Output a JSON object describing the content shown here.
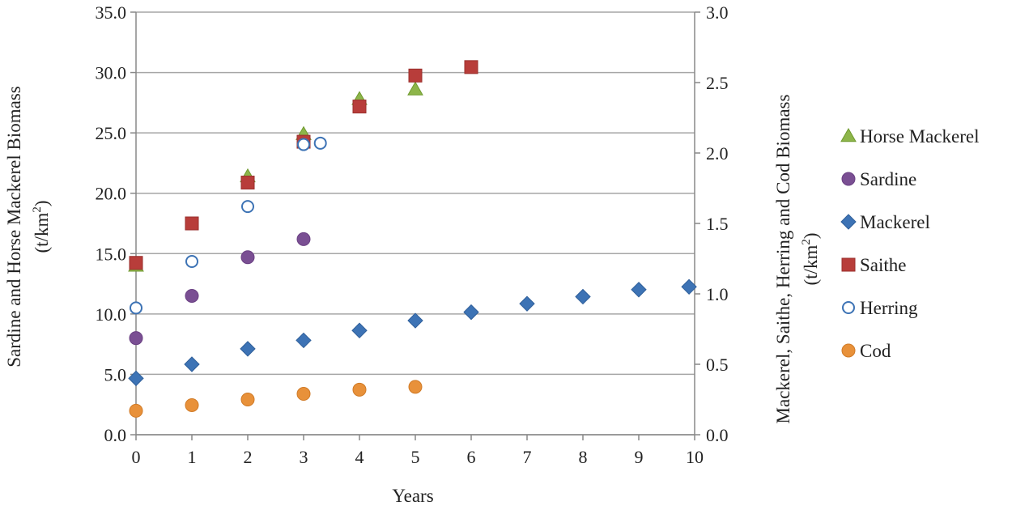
{
  "chart_data": {
    "type": "scatter",
    "xlabel": "Years",
    "ylabel_left_main": "Sardine and Horse Mackerel Biomass",
    "ylabel_left_unit": [
      "(t/km",
      "2",
      ")"
    ],
    "ylabel_right_main": "Mackerel, Saithe, Herring and Cod Biomass",
    "ylabel_right_unit": [
      "(t/km",
      "2",
      ")"
    ],
    "xlim": [
      0,
      10
    ],
    "ylim_left": [
      0,
      35
    ],
    "ylim_right": [
      0,
      3
    ],
    "x_ticks": [
      "0",
      "1",
      "2",
      "3",
      "4",
      "5",
      "6",
      "7",
      "8",
      "9",
      "10"
    ],
    "y_left_ticks": [
      "0.0",
      "5.0",
      "10.0",
      "15.0",
      "20.0",
      "25.0",
      "30.0",
      "35.0"
    ],
    "y_right_ticks": [
      "0.0",
      "0.5",
      "1.0",
      "1.5",
      "2.0",
      "2.5",
      "3.0"
    ],
    "grid": "horizontal",
    "legend_position": "right",
    "series": [
      {
        "name": "Horse Mackerel",
        "axis": "left",
        "marker": "triangle",
        "color": "#8db54a",
        "stroke": "#6f9a2e",
        "points": [
          [
            0,
            14.0
          ],
          [
            2,
            21.4
          ],
          [
            3,
            24.9
          ],
          [
            4,
            27.8
          ],
          [
            5,
            28.6
          ]
        ]
      },
      {
        "name": "Sardine",
        "axis": "left",
        "marker": "circle",
        "color": "#7a4f93",
        "stroke": "#6a4083",
        "points": [
          [
            0,
            8.0
          ],
          [
            1,
            11.5
          ],
          [
            2,
            14.7
          ],
          [
            3,
            16.2
          ]
        ]
      },
      {
        "name": "Mackerel",
        "axis": "right",
        "marker": "diamond",
        "color": "#3d73b5",
        "stroke": "#2f5f9a",
        "points": [
          [
            0,
            0.4
          ],
          [
            1,
            0.5
          ],
          [
            2,
            0.61
          ],
          [
            3,
            0.67
          ],
          [
            4,
            0.74
          ],
          [
            5,
            0.81
          ],
          [
            6,
            0.87
          ],
          [
            7,
            0.93
          ],
          [
            8,
            0.98
          ],
          [
            9,
            1.03
          ],
          [
            9.9,
            1.05
          ]
        ]
      },
      {
        "name": "Saithe",
        "axis": "right",
        "marker": "square",
        "color": "#b83d3a",
        "stroke": "#9a2f2c",
        "points": [
          [
            0,
            1.22
          ],
          [
            1,
            1.5
          ],
          [
            2,
            1.79
          ],
          [
            3,
            2.08
          ],
          [
            4,
            2.33
          ],
          [
            5,
            2.55
          ],
          [
            6,
            2.61
          ]
        ]
      },
      {
        "name": "Herring",
        "axis": "right",
        "marker": "open-circle",
        "color": "#ffffff",
        "stroke": "#3d73b5",
        "points": [
          [
            0,
            0.9
          ],
          [
            1,
            1.23
          ],
          [
            2,
            1.62
          ],
          [
            3,
            2.06
          ],
          [
            3.3,
            2.07
          ]
        ]
      },
      {
        "name": "Cod",
        "axis": "right",
        "marker": "circle",
        "color": "#e8913a",
        "stroke": "#d07a26",
        "points": [
          [
            0,
            0.17
          ],
          [
            1,
            0.21
          ],
          [
            2,
            0.25
          ],
          [
            3,
            0.29
          ],
          [
            4,
            0.32
          ],
          [
            5,
            0.34
          ]
        ]
      }
    ]
  }
}
